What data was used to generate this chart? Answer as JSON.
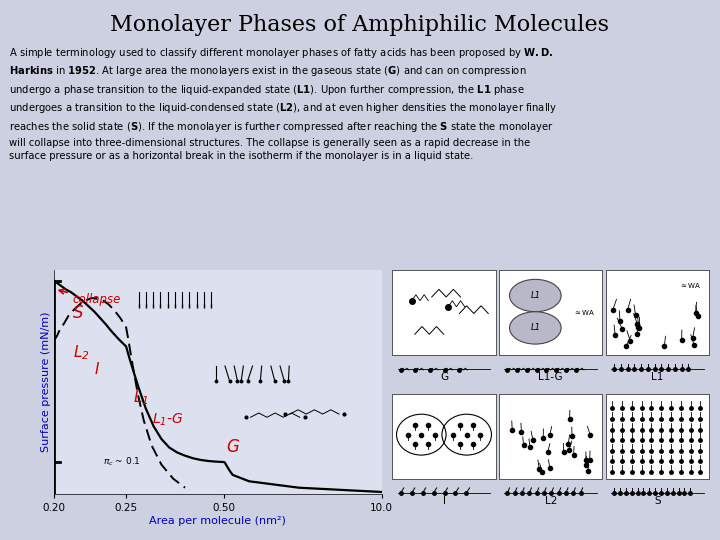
{
  "title": "Monolayer Phases of Amphiphilic Molecules",
  "title_fontsize": 16,
  "background_color": "#ccd0e0",
  "plot_ylabel": "Surface pressure (mN/m)",
  "plot_xlabel": "Area per molecule (nm²)",
  "xtick_labels": [
    "0.20",
    "0.25",
    "0.50",
    "10.0"
  ],
  "red": "#cc0000",
  "blue_label": "#0000bb",
  "text_fontsize": 7.2,
  "plot_bg": "#dde0ee"
}
